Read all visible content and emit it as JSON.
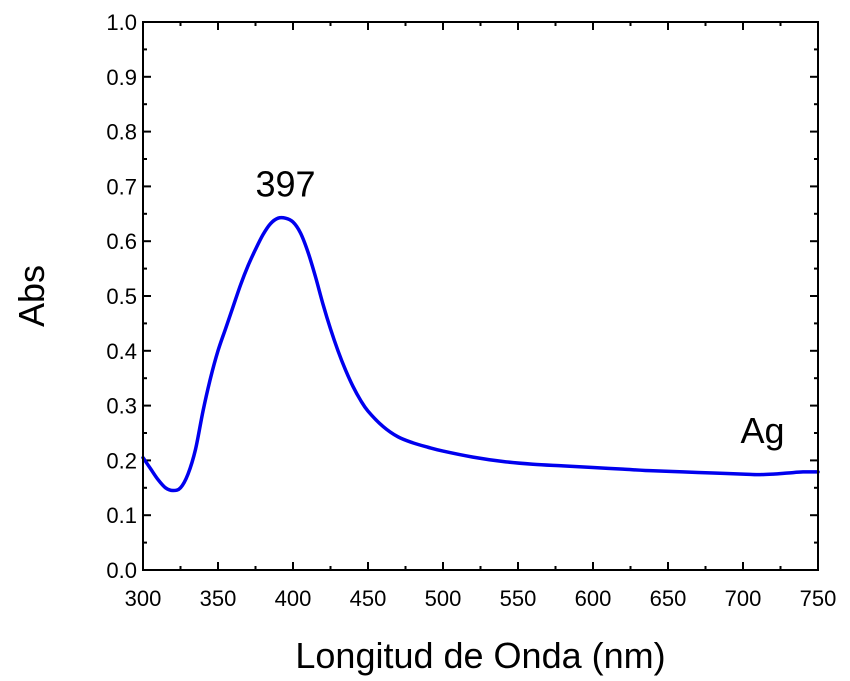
{
  "chart_data": {
    "type": "line",
    "xlabel": "Longitud de Onda (nm)",
    "ylabel": "Abs",
    "xlim": [
      300,
      750
    ],
    "ylim": [
      0.0,
      1.0
    ],
    "x_ticks": [
      "300",
      "350",
      "400",
      "450",
      "500",
      "550",
      "600",
      "650",
      "700",
      "750"
    ],
    "y_ticks": [
      "0.0",
      "0.1",
      "0.2",
      "0.3",
      "0.4",
      "0.5",
      "0.6",
      "0.7",
      "0.8",
      "0.9",
      "1.0"
    ],
    "grid": false,
    "line_color": "#0000ee",
    "annotations": [
      {
        "text": "397",
        "x": 395,
        "y": 0.7
      },
      {
        "text": "Ag",
        "x": 713,
        "y": 0.25
      }
    ],
    "series": [
      {
        "x": [
          300,
          305,
          310,
          315,
          320,
          325,
          330,
          335,
          340,
          345,
          350,
          355,
          360,
          365,
          370,
          375,
          380,
          385,
          390,
          395,
          400,
          405,
          410,
          415,
          420,
          425,
          430,
          435,
          440,
          445,
          450,
          460,
          470,
          480,
          490,
          500,
          520,
          540,
          560,
          580,
          600,
          620,
          640,
          660,
          680,
          700,
          710,
          720,
          730,
          740,
          750
        ],
        "y": [
          0.205,
          0.185,
          0.165,
          0.15,
          0.145,
          0.15,
          0.175,
          0.22,
          0.29,
          0.35,
          0.4,
          0.44,
          0.48,
          0.52,
          0.555,
          0.585,
          0.612,
          0.632,
          0.642,
          0.642,
          0.635,
          0.615,
          0.58,
          0.535,
          0.485,
          0.44,
          0.4,
          0.365,
          0.335,
          0.31,
          0.29,
          0.262,
          0.243,
          0.232,
          0.224,
          0.217,
          0.206,
          0.198,
          0.193,
          0.19,
          0.187,
          0.184,
          0.181,
          0.179,
          0.177,
          0.175,
          0.174,
          0.175,
          0.177,
          0.179,
          0.179
        ]
      }
    ]
  }
}
